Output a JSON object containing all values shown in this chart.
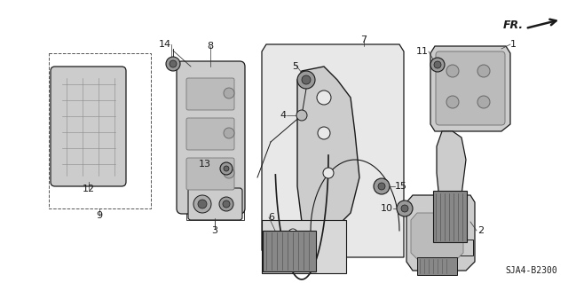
{
  "bg_color": "#ffffff",
  "line_color": "#1a1a1a",
  "diagram_code": "SJA4-B2300",
  "fr_label": "FR.",
  "font_size_labels": 8,
  "font_size_code": 7,
  "font_size_fr": 9,
  "gray_light": "#cccccc",
  "gray_mid": "#999999",
  "gray_dark": "#666666"
}
